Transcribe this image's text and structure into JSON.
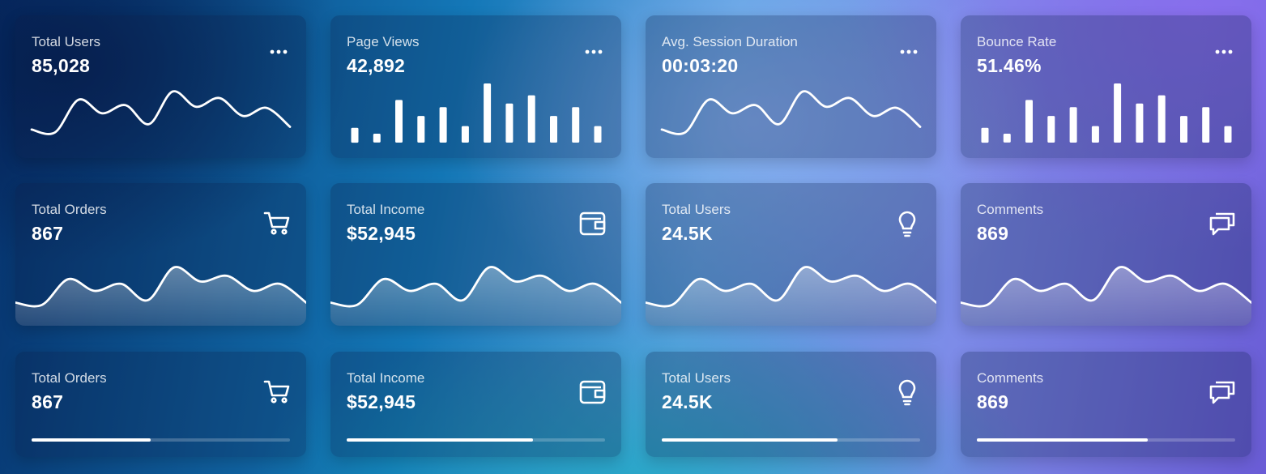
{
  "row1": [
    {
      "title": "Total Users",
      "value": "85,028",
      "chart": "line"
    },
    {
      "title": "Page Views",
      "value": "42,892",
      "chart": "bars"
    },
    {
      "title": "Avg. Session Duration",
      "value": "00:03:20",
      "chart": "line"
    },
    {
      "title": "Bounce Rate",
      "value": "51.46%",
      "chart": "bars"
    }
  ],
  "row2": [
    {
      "title": "Total Orders",
      "value": "867",
      "icon": "cart-icon"
    },
    {
      "title": "Total Income",
      "value": "$52,945",
      "icon": "wallet-icon"
    },
    {
      "title": "Total Users",
      "value": "24.5K",
      "icon": "lightbulb-icon"
    },
    {
      "title": "Comments",
      "value": "869",
      "icon": "comments-icon"
    }
  ],
  "row3": [
    {
      "title": "Total Orders",
      "value": "867",
      "icon": "cart-icon",
      "progress": 0.46
    },
    {
      "title": "Total Income",
      "value": "$52,945",
      "icon": "wallet-icon",
      "progress": 0.72
    },
    {
      "title": "Total Users",
      "value": "24.5K",
      "icon": "lightbulb-icon",
      "progress": 0.68
    },
    {
      "title": "Comments",
      "value": "869",
      "icon": "comments-icon",
      "progress": 0.66
    }
  ],
  "chart_data": [
    {
      "type": "line",
      "card": "Total Users",
      "values": [
        0.3,
        0.25,
        0.85,
        0.6,
        0.75,
        0.4,
        1.0,
        0.72,
        0.88,
        0.55,
        0.7,
        0.35
      ]
    },
    {
      "type": "bar",
      "card": "Page Views",
      "values": [
        0.25,
        0.15,
        0.72,
        0.45,
        0.6,
        0.28,
        1.0,
        0.66,
        0.8,
        0.45,
        0.6,
        0.28
      ]
    },
    {
      "type": "line",
      "card": "Avg. Session Duration",
      "values": [
        0.3,
        0.25,
        0.85,
        0.6,
        0.75,
        0.4,
        1.0,
        0.72,
        0.88,
        0.55,
        0.7,
        0.35
      ]
    },
    {
      "type": "bar",
      "card": "Bounce Rate",
      "values": [
        0.25,
        0.15,
        0.72,
        0.45,
        0.6,
        0.28,
        1.0,
        0.66,
        0.8,
        0.45,
        0.6,
        0.28
      ]
    },
    {
      "type": "area",
      "card": "Total Orders",
      "values": [
        0.25,
        0.2,
        0.75,
        0.5,
        0.65,
        0.3,
        1.0,
        0.7,
        0.82,
        0.5,
        0.65,
        0.25
      ]
    },
    {
      "type": "area",
      "card": "Total Income",
      "values": [
        0.25,
        0.2,
        0.75,
        0.5,
        0.65,
        0.3,
        1.0,
        0.7,
        0.82,
        0.5,
        0.65,
        0.25
      ]
    },
    {
      "type": "area",
      "card": "Total Users",
      "values": [
        0.25,
        0.2,
        0.75,
        0.5,
        0.65,
        0.3,
        1.0,
        0.7,
        0.82,
        0.5,
        0.65,
        0.25
      ]
    },
    {
      "type": "area",
      "card": "Comments",
      "values": [
        0.25,
        0.2,
        0.75,
        0.5,
        0.65,
        0.3,
        1.0,
        0.7,
        0.82,
        0.5,
        0.65,
        0.25
      ]
    }
  ]
}
